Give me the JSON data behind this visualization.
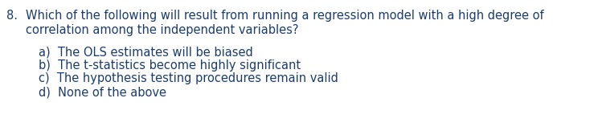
{
  "background_color": "#ffffff",
  "text_color": "#1a3c6e",
  "question_number": "8.",
  "question_line1": "Which of the following will result from running a regression model with a high degree of",
  "question_line2": "correlation among the independent variables?",
  "options": [
    "a)  The OLS estimates will be biased",
    "b)  The t-statistics become highly significant",
    "c)  The hypothesis testing procedures remain valid",
    "d)  None of the above"
  ],
  "font_size": 10.5,
  "font_family": "DejaVu Sans",
  "fig_width": 7.39,
  "fig_height": 1.68,
  "dpi": 100
}
